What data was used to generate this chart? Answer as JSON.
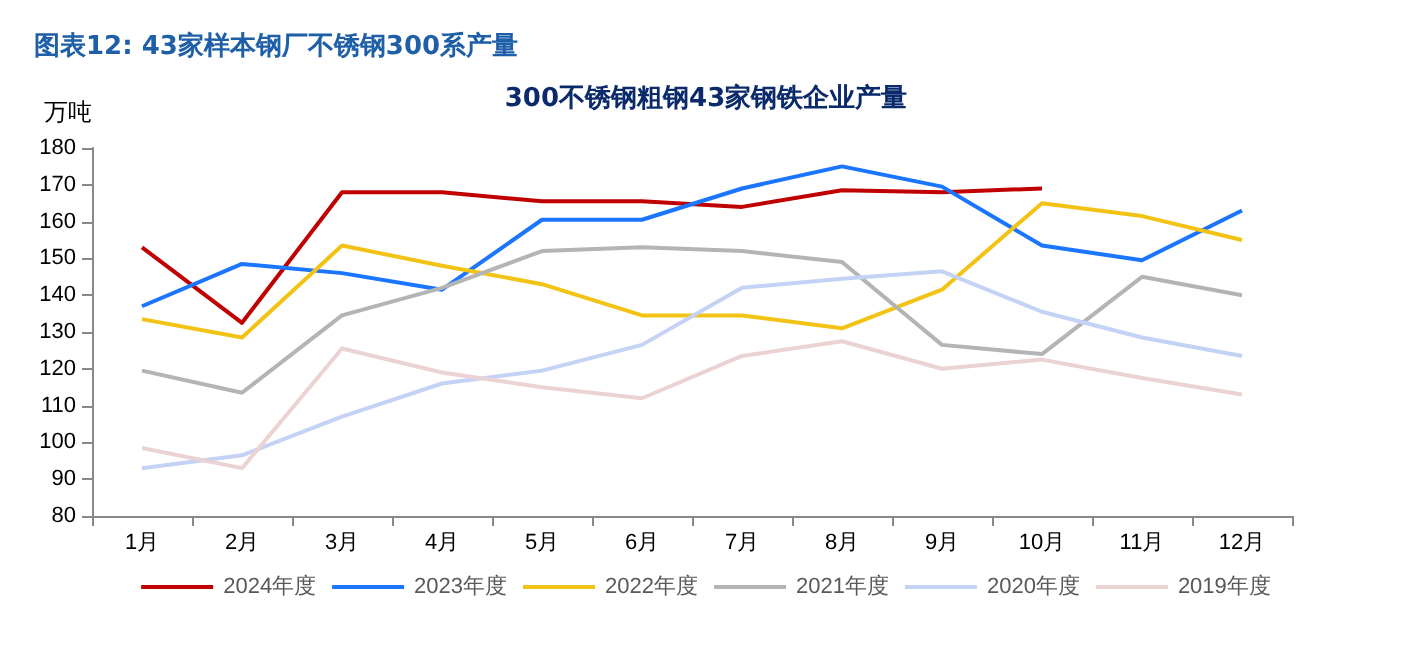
{
  "chart_data": {
    "type": "line",
    "title": "300不锈钢粗钢43家钢铁企业产量",
    "subtitle": "图表12: 43家样本钢厂不锈钢300系产量",
    "ylabel": "万吨",
    "categories": [
      "1月",
      "2月",
      "3月",
      "4月",
      "5月",
      "6月",
      "7月",
      "8月",
      "9月",
      "10月",
      "11月",
      "12月"
    ],
    "series": [
      {
        "name": "2024年度",
        "color": "#c00000",
        "values": [
          153,
          132.5,
          168,
          168,
          165.5,
          165.5,
          164,
          168.5,
          168,
          169,
          null,
          null
        ]
      },
      {
        "name": "2023年度",
        "color": "#1a75ff",
        "values": [
          137,
          148.5,
          146,
          141.5,
          160.5,
          160.5,
          169,
          175,
          169.5,
          153.5,
          149.5,
          163
        ]
      },
      {
        "name": "2022年度",
        "color": "#f2c314",
        "values": [
          133.5,
          128.5,
          153.5,
          148,
          143,
          134.5,
          134.5,
          131,
          141.5,
          165,
          161.5,
          155
        ]
      },
      {
        "name": "2021年度",
        "color": "#b4b4b4",
        "values": [
          119.5,
          113.5,
          134.5,
          142,
          152,
          153,
          152,
          149,
          126.5,
          124,
          145,
          140
        ]
      },
      {
        "name": "2020年度",
        "color": "#c3d2f5",
        "values": [
          93,
          96.5,
          107,
          116,
          119.5,
          126.5,
          142,
          144.5,
          146.5,
          135.5,
          128.5,
          123.5
        ]
      },
      {
        "name": "2019年度",
        "color": "#ebd3d3",
        "values": [
          98.5,
          93,
          125.5,
          119,
          115,
          112,
          123.5,
          127.5,
          120,
          122.5,
          117.5,
          113
        ]
      }
    ],
    "ylim": [
      80,
      180
    ],
    "yticks": [
      80,
      90,
      100,
      110,
      120,
      130,
      140,
      150,
      160,
      170,
      180
    ],
    "grid": false,
    "legend": "bottom",
    "marker": "none",
    "line_style": "solid"
  }
}
